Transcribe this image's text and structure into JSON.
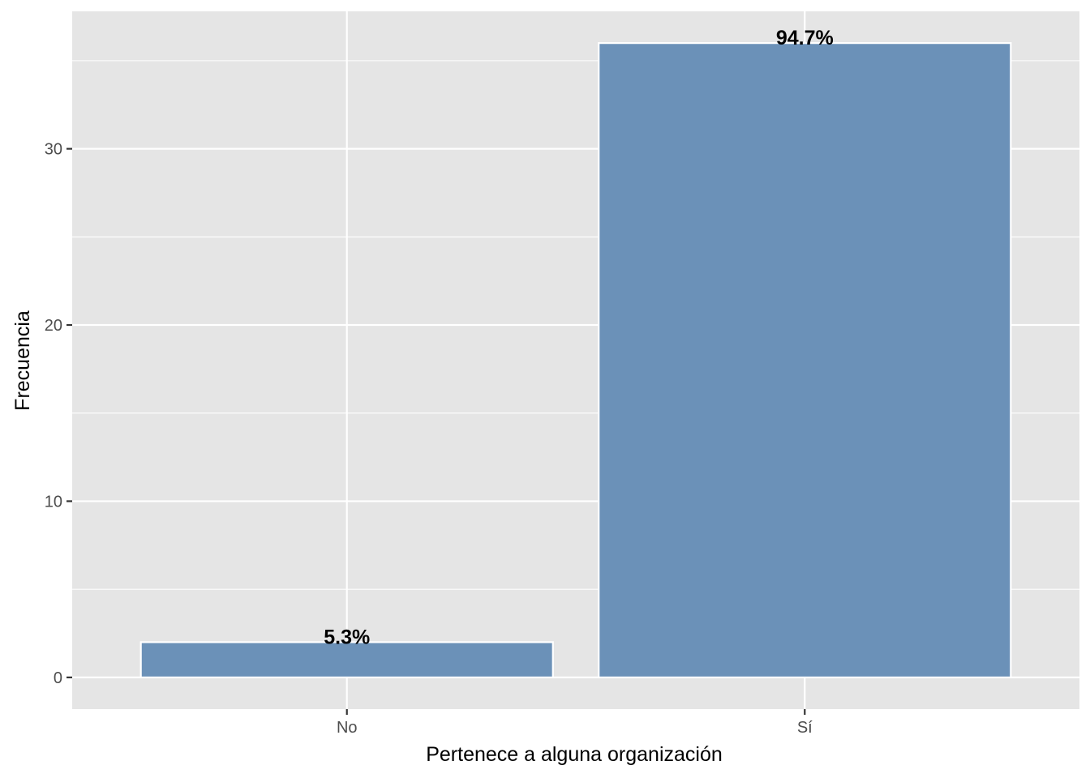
{
  "chart_data": {
    "type": "bar",
    "categories": [
      "No",
      "Sí"
    ],
    "values": [
      2,
      36
    ],
    "data_labels": [
      "5.3%",
      "94.7%"
    ],
    "xlabel": "Pertenece a alguna organización",
    "ylabel": "Frecuencia",
    "yticks": [
      0,
      10,
      20,
      30
    ],
    "ylim": [
      -1.8,
      37.8
    ],
    "grid": true,
    "legend": "none",
    "colors": {
      "bar_fill": "#6b91b8",
      "bar_outline": "#ffffff",
      "panel_background": "#e5e5e5",
      "grid": "#ffffff"
    }
  }
}
